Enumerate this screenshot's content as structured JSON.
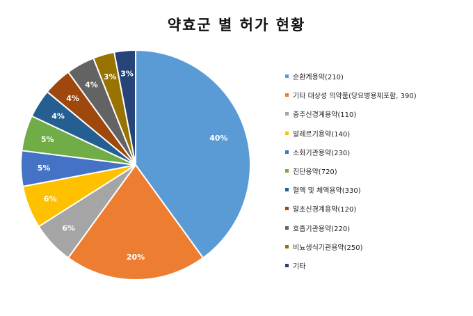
{
  "chart_data": {
    "type": "pie",
    "title": "약효군 별 허가 현황",
    "categories": [
      "순환계용약(210)",
      "기타 대상성 의약품(당요병용제포함, 390)",
      "중추신경계용약(110)",
      "알레르기용약(140)",
      "소화기관용약(230)",
      "진단용약(720)",
      "혈액 및 체액용약(330)",
      "말초신경계용약(120)",
      "호흡기관용약(220)",
      "비뇨생식기관용약(250)",
      "기타"
    ],
    "values": [
      40,
      20,
      6,
      6,
      5,
      5,
      4,
      4,
      4,
      3,
      3
    ],
    "data_labels": [
      "40%",
      "20%",
      "6%",
      "6%",
      "5%",
      "5%",
      "4%",
      "4%",
      "4%",
      "3%",
      "3%"
    ],
    "colors": [
      "#5b9bd5",
      "#ed7d31",
      "#a5a5a5",
      "#ffc000",
      "#4472c4",
      "#70ad47",
      "#255e91",
      "#9e480e",
      "#636363",
      "#997300",
      "#264478"
    ],
    "legend_position": "right"
  }
}
